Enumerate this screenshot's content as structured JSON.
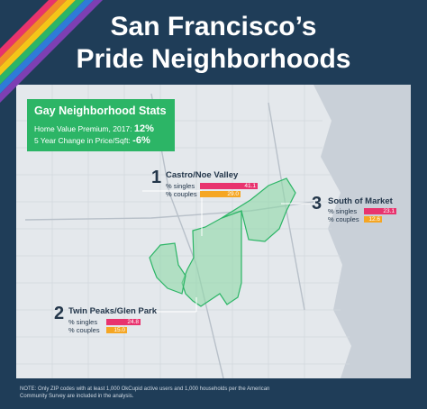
{
  "title_line1": "San Francisco’s",
  "title_line2": "Pride Neighborhoods",
  "stats": {
    "heading": "Gay Neighborhood Stats",
    "row1_label": "Home Value Premium, 2017:",
    "row1_value": "12%",
    "row2_label": "5 Year Change in Price/Sqft:",
    "row2_value": "-6%"
  },
  "neighborhoods": [
    {
      "number": "1",
      "name": "Castro/Noe Valley",
      "singles_label": "% singles",
      "singles": "41.1",
      "couples_label": "% couples",
      "couples": "29.0"
    },
    {
      "number": "2",
      "name": "Twin Peaks/Glen Park",
      "singles_label": "% singles",
      "singles": "24.8",
      "couples_label": "% couples",
      "couples": "15.0"
    },
    {
      "number": "3",
      "name": "South of Market",
      "singles_label": "% singles",
      "singles": "23.1",
      "couples_label": "% couples",
      "couples": "12.6"
    }
  ],
  "note": "NOTE: Only ZIP codes with at least 1,000 OkCupid active users and 1,000 households per the American Community Survey are included in the analysis.",
  "colors": {
    "background": "#1f3d58",
    "green": "#2cb566",
    "pink": "#e8336e",
    "gold": "#f5a623"
  }
}
